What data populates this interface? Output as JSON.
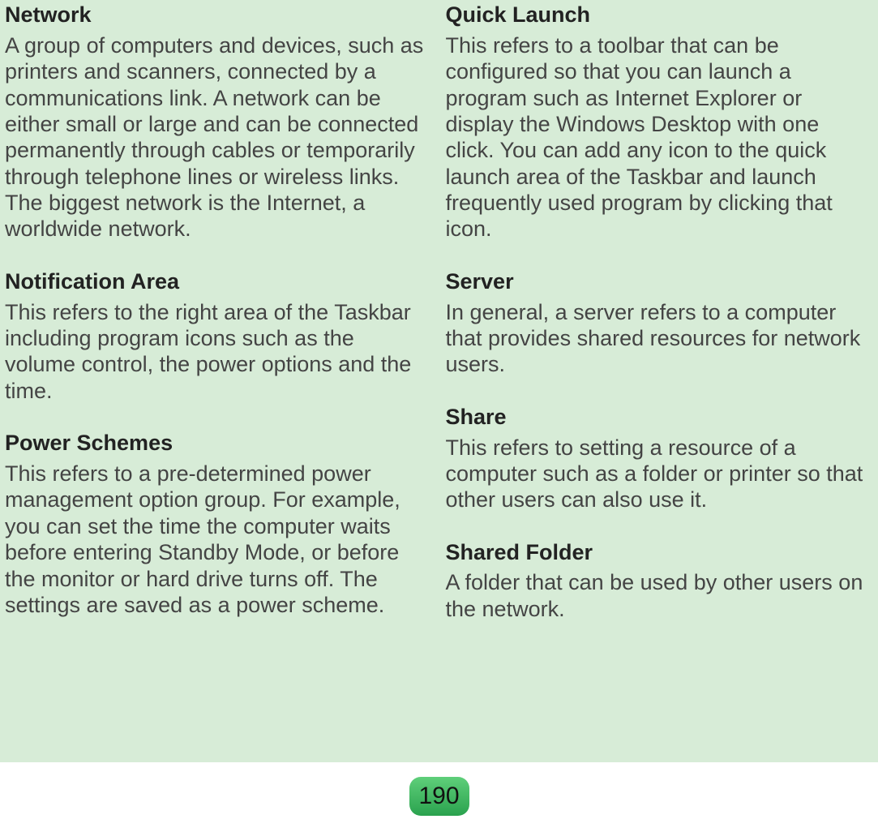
{
  "page": {
    "background_color": "#d7ecd7",
    "footer_background": "#ffffff",
    "page_number_gradient_top": "#5fcf7a",
    "page_number_gradient_bottom": "#2aa24e",
    "term_color": "#222222",
    "def_color": "#444444",
    "font_family": "Arial, Helvetica, sans-serif",
    "term_fontsize_pt": 20,
    "def_fontsize_pt": 20,
    "page_number": "190"
  },
  "left": [
    {
      "term": "Network",
      "def": "A group of computers and devices, such as printers and scanners, connected by a communications link. A network can be either small or large and can be connected permanently through cables or temporarily through telephone lines or wireless links. The biggest network is the Internet, a worldwide network."
    },
    {
      "term": "Notification Area",
      "def": "This refers to the right area of the Taskbar including program icons such as the volume control, the power options and the time."
    },
    {
      "term": "Power Schemes",
      "def": "This refers to a pre-determined power management option group. For example, you can set the time the computer waits before entering Standby Mode, or before the monitor or hard drive turns off. The settings are saved as a power scheme."
    }
  ],
  "right": [
    {
      "term": "Quick Launch",
      "def": "This refers to a toolbar that can be configured so that you can launch a program such as Internet Explorer or display the Windows Desktop with one click. You can add any icon to the quick launch area of the Taskbar and launch frequently used program by clicking that icon."
    },
    {
      "term": "Server",
      "def": "In general, a server refers to a computer that provides shared resources for network users."
    },
    {
      "term": "Share",
      "def": "This refers to setting a resource of a computer such as a folder or printer so that other users can also use it."
    },
    {
      "term": "Shared Folder",
      "def": "A folder that can be used by other users on the network."
    }
  ]
}
